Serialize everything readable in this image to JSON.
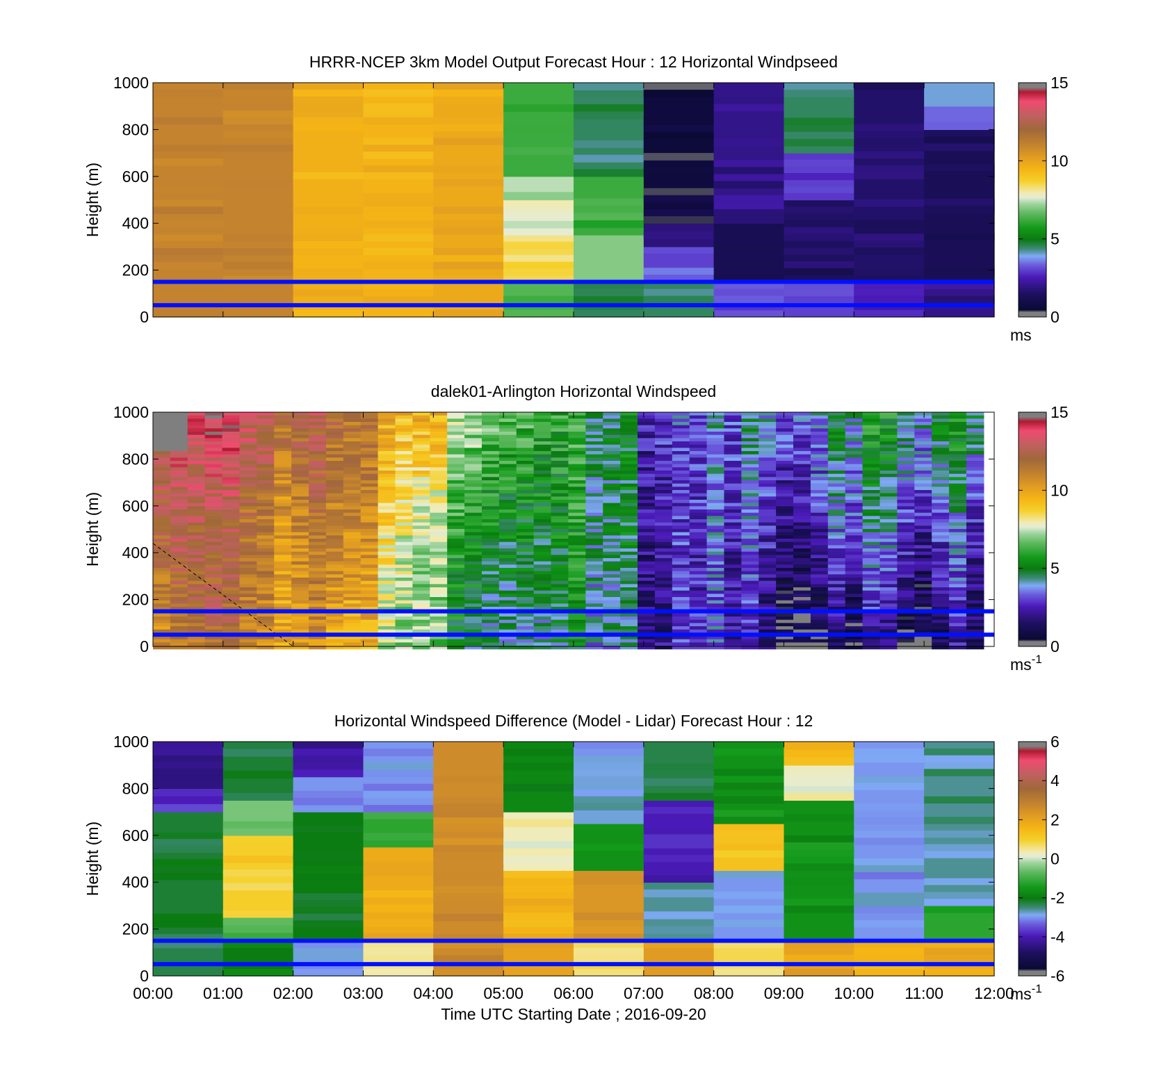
{
  "chart_data": [
    {
      "type": "heatmap",
      "title": "HRRR-NCEP 3km Model Output   Forecast Hour : 12 Horizontal Windpseed",
      "ylabel": "Height (m)",
      "ylim": [
        0,
        1000
      ],
      "yticks": [
        "0",
        "200",
        "400",
        "600",
        "800",
        "1000"
      ],
      "xlim_hours": [
        0,
        12
      ],
      "colorbar": {
        "ticks": [
          "0",
          "5",
          "10",
          "15"
        ],
        "range": [
          0,
          15
        ],
        "unit": "ms",
        "unit_sup": ""
      },
      "reference_lines_m": [
        150,
        50
      ],
      "columns": [
        {
          "t0": 0,
          "t1": 1,
          "bands": [
            {
              "h0": 0,
              "h1": 1000,
              "v": 11
            }
          ]
        },
        {
          "t0": 1,
          "t1": 2,
          "bands": [
            {
              "h0": 0,
              "h1": 1000,
              "v": 11
            }
          ]
        },
        {
          "t0": 2,
          "t1": 3,
          "bands": [
            {
              "h0": 0,
              "h1": 1000,
              "v": 9.6
            }
          ]
        },
        {
          "t0": 3,
          "t1": 4,
          "bands": [
            {
              "h0": 0,
              "h1": 1000,
              "v": 9.5
            }
          ]
        },
        {
          "t0": 4,
          "t1": 5,
          "bands": [
            {
              "h0": 0,
              "h1": 1000,
              "v": 9.8
            }
          ]
        },
        {
          "t0": 5,
          "t1": 6,
          "bands": [
            {
              "h0": 0,
              "h1": 150,
              "v": 6.5
            },
            {
              "h0": 150,
              "h1": 350,
              "v": 8.5
            },
            {
              "h0": 350,
              "h1": 500,
              "v": 7.7
            },
            {
              "h0": 500,
              "h1": 600,
              "v": 7.4
            },
            {
              "h0": 600,
              "h1": 1000,
              "v": 6.2
            }
          ]
        },
        {
          "t0": 6,
          "t1": 7,
          "bands": [
            {
              "h0": 0,
              "h1": 150,
              "v": 4.8
            },
            {
              "h0": 150,
              "h1": 350,
              "v": 7
            },
            {
              "h0": 350,
              "h1": 600,
              "v": 6.2
            },
            {
              "h0": 600,
              "h1": 1000,
              "v": 4.5
            }
          ]
        },
        {
          "t0": 7,
          "t1": 8,
          "bands": [
            {
              "h0": 0,
              "h1": 150,
              "v": 4.5
            },
            {
              "h0": 150,
              "h1": 300,
              "v": 3.3
            },
            {
              "h0": 300,
              "h1": 400,
              "v": 1.8
            },
            {
              "h0": 400,
              "h1": 1000,
              "v": 0.7
            }
          ]
        },
        {
          "t0": 8,
          "t1": 9,
          "bands": [
            {
              "h0": 0,
              "h1": 150,
              "v": 3.2
            },
            {
              "h0": 150,
              "h1": 400,
              "v": 1.2
            },
            {
              "h0": 400,
              "h1": 1000,
              "v": 2
            }
          ]
        },
        {
          "t0": 9,
          "t1": 10,
          "bands": [
            {
              "h0": 0,
              "h1": 150,
              "v": 3
            },
            {
              "h0": 150,
              "h1": 500,
              "v": 1.5
            },
            {
              "h0": 500,
              "h1": 700,
              "v": 3
            },
            {
              "h0": 700,
              "h1": 1000,
              "v": 4.5
            }
          ]
        },
        {
          "t0": 10,
          "t1": 11,
          "bands": [
            {
              "h0": 0,
              "h1": 150,
              "v": 2.5
            },
            {
              "h0": 150,
              "h1": 1000,
              "v": 1.6
            }
          ]
        },
        {
          "t0": 11,
          "t1": 12,
          "bands": [
            {
              "h0": 0,
              "h1": 150,
              "v": 2
            },
            {
              "h0": 150,
              "h1": 800,
              "v": 1.3
            },
            {
              "h0": 800,
              "h1": 900,
              "v": 3.4
            },
            {
              "h0": 900,
              "h1": 1000,
              "v": 4
            }
          ]
        }
      ]
    },
    {
      "type": "heatmap",
      "title": "dalek01-Arlington  Horizontal Windspeed",
      "ylabel": "Height (m)",
      "ylim": [
        0,
        1000
      ],
      "yticks": [
        "0",
        "200",
        "400",
        "600",
        "800",
        "1000"
      ],
      "xlim_hours": [
        0,
        12
      ],
      "data_end_hour": 11.85,
      "colorbar": {
        "ticks": [
          "0",
          "5",
          "10",
          "15"
        ],
        "range": [
          0,
          15
        ],
        "unit": "ms",
        "unit_sup": "-1"
      },
      "reference_lines_m": [
        150,
        50
      ],
      "keyframes": [
        {
          "t": 0,
          "low": 10.5,
          "mid": 12,
          "high": 13.5
        },
        {
          "t": 1,
          "low": 11,
          "mid": 11.5,
          "high": 13
        },
        {
          "t": 2,
          "low": 10.5,
          "mid": 11,
          "high": 12.5
        },
        {
          "t": 2.8,
          "low": 9,
          "mid": 10.5,
          "high": 11
        },
        {
          "t": 3.4,
          "low": 8,
          "mid": 9,
          "high": 10.5
        },
        {
          "t": 4,
          "low": 6,
          "mid": 6.5,
          "high": 9
        },
        {
          "t": 4.6,
          "low": 5,
          "mid": 6,
          "high": 7.5
        },
        {
          "t": 5.5,
          "low": 5,
          "mid": 6,
          "high": 7
        },
        {
          "t": 6.5,
          "low": 4.5,
          "mid": 5,
          "high": 5
        },
        {
          "t": 7,
          "low": 2.5,
          "mid": 3,
          "high": 3.5
        },
        {
          "t": 8,
          "low": 2.5,
          "mid": 2.5,
          "high": 3
        },
        {
          "t": 9,
          "low": 1,
          "mid": 2.5,
          "high": 4
        },
        {
          "t": 10,
          "low": 1,
          "mid": 3.5,
          "high": 4.8
        },
        {
          "t": 11,
          "low": 1,
          "mid": 3,
          "high": 5
        },
        {
          "t": 11.85,
          "low": 1.5,
          "mid": 2.5,
          "high": 5
        }
      ],
      "dashed_line": {
        "start": {
          "t": 0,
          "h": 440
        },
        "end": {
          "t": 2,
          "h": 0
        }
      }
    },
    {
      "type": "heatmap",
      "title": "Horizontal Windspeed Difference (Model - Lidar) Forecast Hour : 12",
      "ylabel": "Height (m)",
      "xlabel": "Time UTC  Starting Date ; 2016-09-20",
      "ylim": [
        0,
        1000
      ],
      "yticks": [
        "0",
        "200",
        "400",
        "600",
        "800",
        "1000"
      ],
      "xticks": [
        "00:00",
        "01:00",
        "02:00",
        "03:00",
        "04:00",
        "05:00",
        "06:00",
        "07:00",
        "08:00",
        "09:00",
        "10:00",
        "11:00",
        "12:00"
      ],
      "xlim_hours": [
        0,
        12
      ],
      "colorbar": {
        "ticks": [
          "-6",
          "-4",
          "-2",
          "0",
          "2",
          "4",
          "6"
        ],
        "range": [
          -6,
          6
        ],
        "unit": "ms",
        "unit_sup": "-1"
      },
      "reference_lines_m": [
        150,
        50
      ],
      "columns": [
        {
          "t0": 0,
          "t1": 1,
          "bands": [
            {
              "h0": 0,
              "h1": 150,
              "v": -2.3
            },
            {
              "h0": 150,
              "h1": 700,
              "v": -2.2
            },
            {
              "h0": 700,
              "h1": 800,
              "v": -3.8
            },
            {
              "h0": 800,
              "h1": 1000,
              "v": -4.5
            }
          ]
        },
        {
          "t0": 1,
          "t1": 2,
          "bands": [
            {
              "h0": 0,
              "h1": 150,
              "v": -2
            },
            {
              "h0": 150,
              "h1": 250,
              "v": -0.8
            },
            {
              "h0": 250,
              "h1": 600,
              "v": 1
            },
            {
              "h0": 600,
              "h1": 750,
              "v": -0.5
            },
            {
              "h0": 750,
              "h1": 1000,
              "v": -2.2
            }
          ]
        },
        {
          "t0": 2,
          "t1": 3,
          "bands": [
            {
              "h0": 0,
              "h1": 150,
              "v": -2.8
            },
            {
              "h0": 150,
              "h1": 700,
              "v": -2
            },
            {
              "h0": 700,
              "h1": 850,
              "v": -3
            },
            {
              "h0": 850,
              "h1": 1000,
              "v": -4.2
            }
          ]
        },
        {
          "t0": 3,
          "t1": 4,
          "bands": [
            {
              "h0": 0,
              "h1": 150,
              "v": 0.5
            },
            {
              "h0": 150,
              "h1": 550,
              "v": 1.8
            },
            {
              "h0": 550,
              "h1": 700,
              "v": -1.2
            },
            {
              "h0": 700,
              "h1": 1000,
              "v": -3
            }
          ]
        },
        {
          "t0": 4,
          "t1": 5,
          "bands": [
            {
              "h0": 0,
              "h1": 1000,
              "v": 2.6
            }
          ]
        },
        {
          "t0": 5,
          "t1": 6,
          "bands": [
            {
              "h0": 0,
              "h1": 150,
              "v": 2
            },
            {
              "h0": 150,
              "h1": 450,
              "v": 1.6
            },
            {
              "h0": 450,
              "h1": 700,
              "v": 0.3
            },
            {
              "h0": 700,
              "h1": 1000,
              "v": -1.8
            }
          ]
        },
        {
          "t0": 6,
          "t1": 7,
          "bands": [
            {
              "h0": 0,
              "h1": 150,
              "v": 0.6
            },
            {
              "h0": 150,
              "h1": 450,
              "v": 2.3
            },
            {
              "h0": 450,
              "h1": 650,
              "v": -1.6
            },
            {
              "h0": 650,
              "h1": 1000,
              "v": -2.8
            }
          ]
        },
        {
          "t0": 7,
          "t1": 8,
          "bands": [
            {
              "h0": 0,
              "h1": 150,
              "v": 2.2
            },
            {
              "h0": 150,
              "h1": 400,
              "v": -2.6
            },
            {
              "h0": 400,
              "h1": 750,
              "v": -4
            },
            {
              "h0": 750,
              "h1": 1000,
              "v": -2.3
            }
          ]
        },
        {
          "t0": 8,
          "t1": 9,
          "bands": [
            {
              "h0": 0,
              "h1": 150,
              "v": 0.8
            },
            {
              "h0": 150,
              "h1": 450,
              "v": -3
            },
            {
              "h0": 450,
              "h1": 650,
              "v": 1.3
            },
            {
              "h0": 650,
              "h1": 1000,
              "v": -1.6
            }
          ]
        },
        {
          "t0": 9,
          "t1": 10,
          "bands": [
            {
              "h0": 0,
              "h1": 150,
              "v": 2
            },
            {
              "h0": 150,
              "h1": 750,
              "v": -1.6
            },
            {
              "h0": 750,
              "h1": 900,
              "v": 0.3
            },
            {
              "h0": 900,
              "h1": 1000,
              "v": 1.5
            }
          ]
        },
        {
          "t0": 10,
          "t1": 11,
          "bands": [
            {
              "h0": 0,
              "h1": 150,
              "v": 1.6
            },
            {
              "h0": 150,
              "h1": 1000,
              "v": -3
            }
          ]
        },
        {
          "t0": 11,
          "t1": 12,
          "bands": [
            {
              "h0": 0,
              "h1": 150,
              "v": 1.8
            },
            {
              "h0": 150,
              "h1": 300,
              "v": -1.2
            },
            {
              "h0": 300,
              "h1": 1000,
              "v": -2.6
            }
          ]
        }
      ]
    }
  ]
}
